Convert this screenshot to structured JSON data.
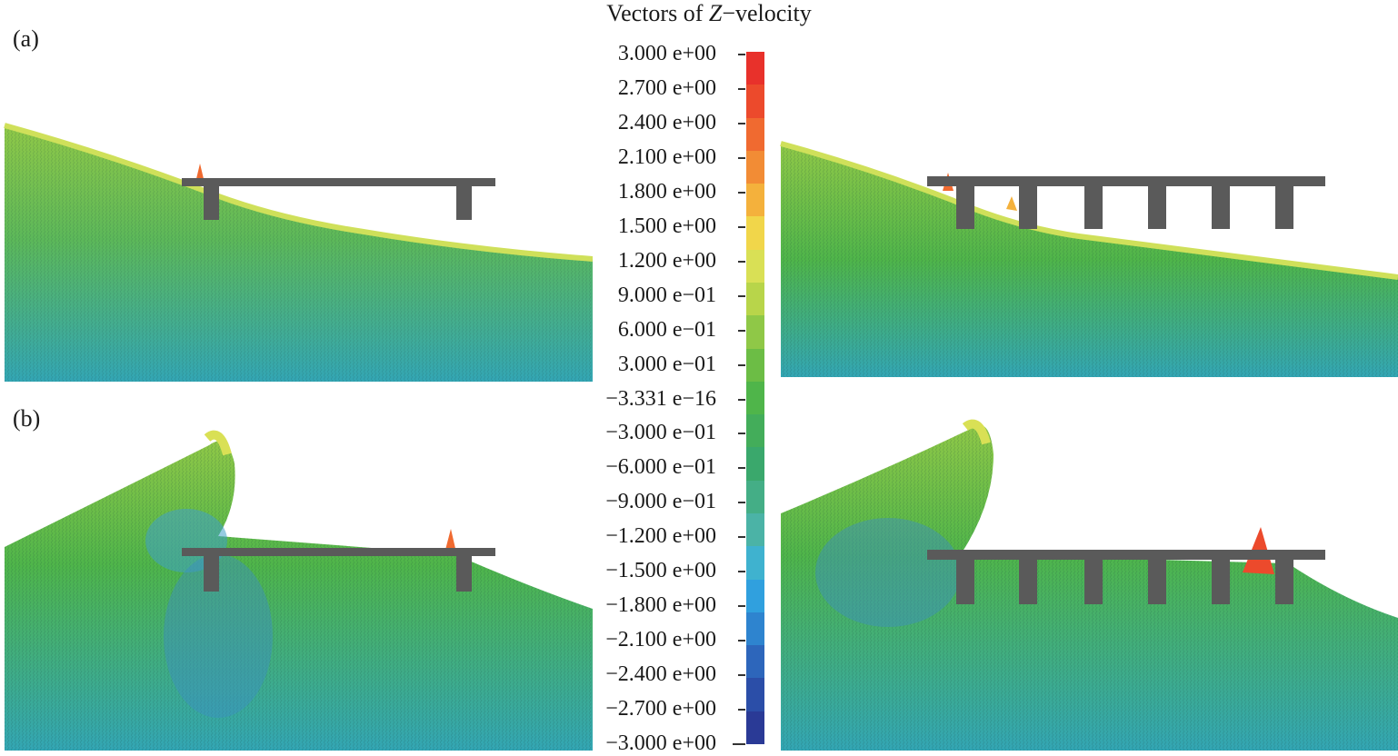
{
  "figure": {
    "legend": {
      "title_prefix": "Vectors of ",
      "title_var": "Z",
      "title_suffix": "−velocity",
      "ticks": [
        "3.000 e+00",
        "2.700 e+00",
        "2.400 e+00",
        "2.100 e+00",
        "1.800 e+00",
        "1.500 e+00",
        "1.200 e+00",
        "9.000 e−01",
        "6.000 e−01",
        "3.000 e−01",
        "−3.331 e−16",
        "−3.000 e−01",
        "−6.000 e−01",
        "−9.000 e−01",
        "−1.200 e+00",
        "−1.500 e+00",
        "−1.800 e+00",
        "−2.100 e+00",
        "−2.400 e+00",
        "−2.700 e+00",
        "−3.000 e+00"
      ],
      "colors": [
        "#e8312b",
        "#ec4a2c",
        "#f06a30",
        "#f28c35",
        "#f4b13c",
        "#f1d64a",
        "#d9e055",
        "#b8d54a",
        "#8fc847",
        "#6cbd45",
        "#4fb54a",
        "#43ad5a",
        "#3aa86c",
        "#44ae86",
        "#4bb3a6",
        "#3fb2cf",
        "#30a0de",
        "#2e84cf",
        "#2d66bb",
        "#2b4ea8",
        "#2a3a96"
      ]
    },
    "panels": [
      {
        "label": "(a)"
      },
      {
        "label": "(b)"
      }
    ],
    "colors": {
      "structure": "#5a5a5a",
      "deep_water": "#33a6b4",
      "mid_water": "#5cb85a",
      "surface": "#cfe05a"
    }
  }
}
